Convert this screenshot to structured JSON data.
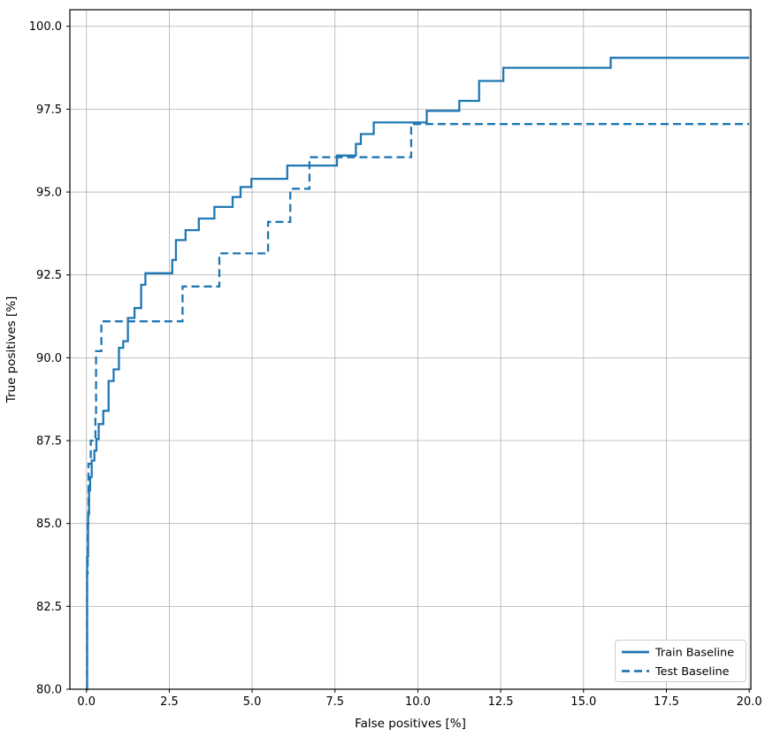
{
  "figure": {
    "background": "#ffffff"
  },
  "colors": {
    "line": "#1f77b4",
    "grid": "#b0b0b0",
    "spine": "#000000",
    "tick_text": "#000000",
    "legend_border": "#cccccc",
    "legend_bg": "#ffffff"
  },
  "legend": {
    "position": "lower right"
  },
  "chart_data": {
    "type": "line",
    "subtype": "step-roc",
    "title": "",
    "xlabel": "False positives [%]",
    "ylabel": "True positives [%]",
    "xlim": [
      -0.5,
      20.05
    ],
    "ylim": [
      80,
      100.5
    ],
    "grid": true,
    "legend_position": "lower right",
    "x_ticks": [
      0.0,
      2.5,
      5.0,
      7.5,
      10.0,
      12.5,
      15.0,
      17.5,
      20.0
    ],
    "x_tick_labels": [
      "0.0",
      "2.5",
      "5.0",
      "7.5",
      "10.0",
      "12.5",
      "15.0",
      "17.5",
      "20.0"
    ],
    "y_ticks": [
      80.0,
      82.5,
      85.0,
      87.5,
      90.0,
      92.5,
      95.0,
      97.5,
      100.0
    ],
    "y_tick_labels": [
      "80.0",
      "82.5",
      "85.0",
      "87.5",
      "90.0",
      "92.5",
      "95.0",
      "97.5",
      "100.0"
    ],
    "series": [
      {
        "name": "Train Baseline",
        "style": "solid",
        "color": "#1f77b4",
        "step_points": [
          [
            0.0,
            80.0
          ],
          [
            0.02,
            84.0
          ],
          [
            0.05,
            85.3
          ],
          [
            0.08,
            86.0
          ],
          [
            0.11,
            86.4
          ],
          [
            0.16,
            86.9
          ],
          [
            0.24,
            87.2
          ],
          [
            0.3,
            87.55
          ],
          [
            0.37,
            88.0
          ],
          [
            0.51,
            88.4
          ],
          [
            0.67,
            89.3
          ],
          [
            0.82,
            89.65
          ],
          [
            0.98,
            90.3
          ],
          [
            1.11,
            90.5
          ],
          [
            1.25,
            91.2
          ],
          [
            1.45,
            91.5
          ],
          [
            1.65,
            92.2
          ],
          [
            1.78,
            92.55
          ],
          [
            2.59,
            92.95
          ],
          [
            2.7,
            93.55
          ],
          [
            2.99,
            93.85
          ],
          [
            3.39,
            94.2
          ],
          [
            3.86,
            94.55
          ],
          [
            4.41,
            94.85
          ],
          [
            4.65,
            95.15
          ],
          [
            4.98,
            95.4
          ],
          [
            6.06,
            95.8
          ],
          [
            7.56,
            96.1
          ],
          [
            8.13,
            96.45
          ],
          [
            8.28,
            96.75
          ],
          [
            8.67,
            97.1
          ],
          [
            10.27,
            97.45
          ],
          [
            11.25,
            97.75
          ],
          [
            11.85,
            98.35
          ],
          [
            12.58,
            98.75
          ],
          [
            15.82,
            99.05
          ],
          [
            20.0,
            99.05
          ]
        ]
      },
      {
        "name": "Test Baseline",
        "style": "dashed",
        "color": "#1f77b4",
        "step_points": [
          [
            0.0,
            80.0
          ],
          [
            0.02,
            83.5
          ],
          [
            0.04,
            85.0
          ],
          [
            0.06,
            86.8
          ],
          [
            0.13,
            87.5
          ],
          [
            0.27,
            88.2
          ],
          [
            0.29,
            90.2
          ],
          [
            0.45,
            91.1
          ],
          [
            2.9,
            92.15
          ],
          [
            4.01,
            93.15
          ],
          [
            5.48,
            94.1
          ],
          [
            6.15,
            95.1
          ],
          [
            6.73,
            96.05
          ],
          [
            9.8,
            97.05
          ],
          [
            20.0,
            97.05
          ]
        ]
      }
    ]
  }
}
